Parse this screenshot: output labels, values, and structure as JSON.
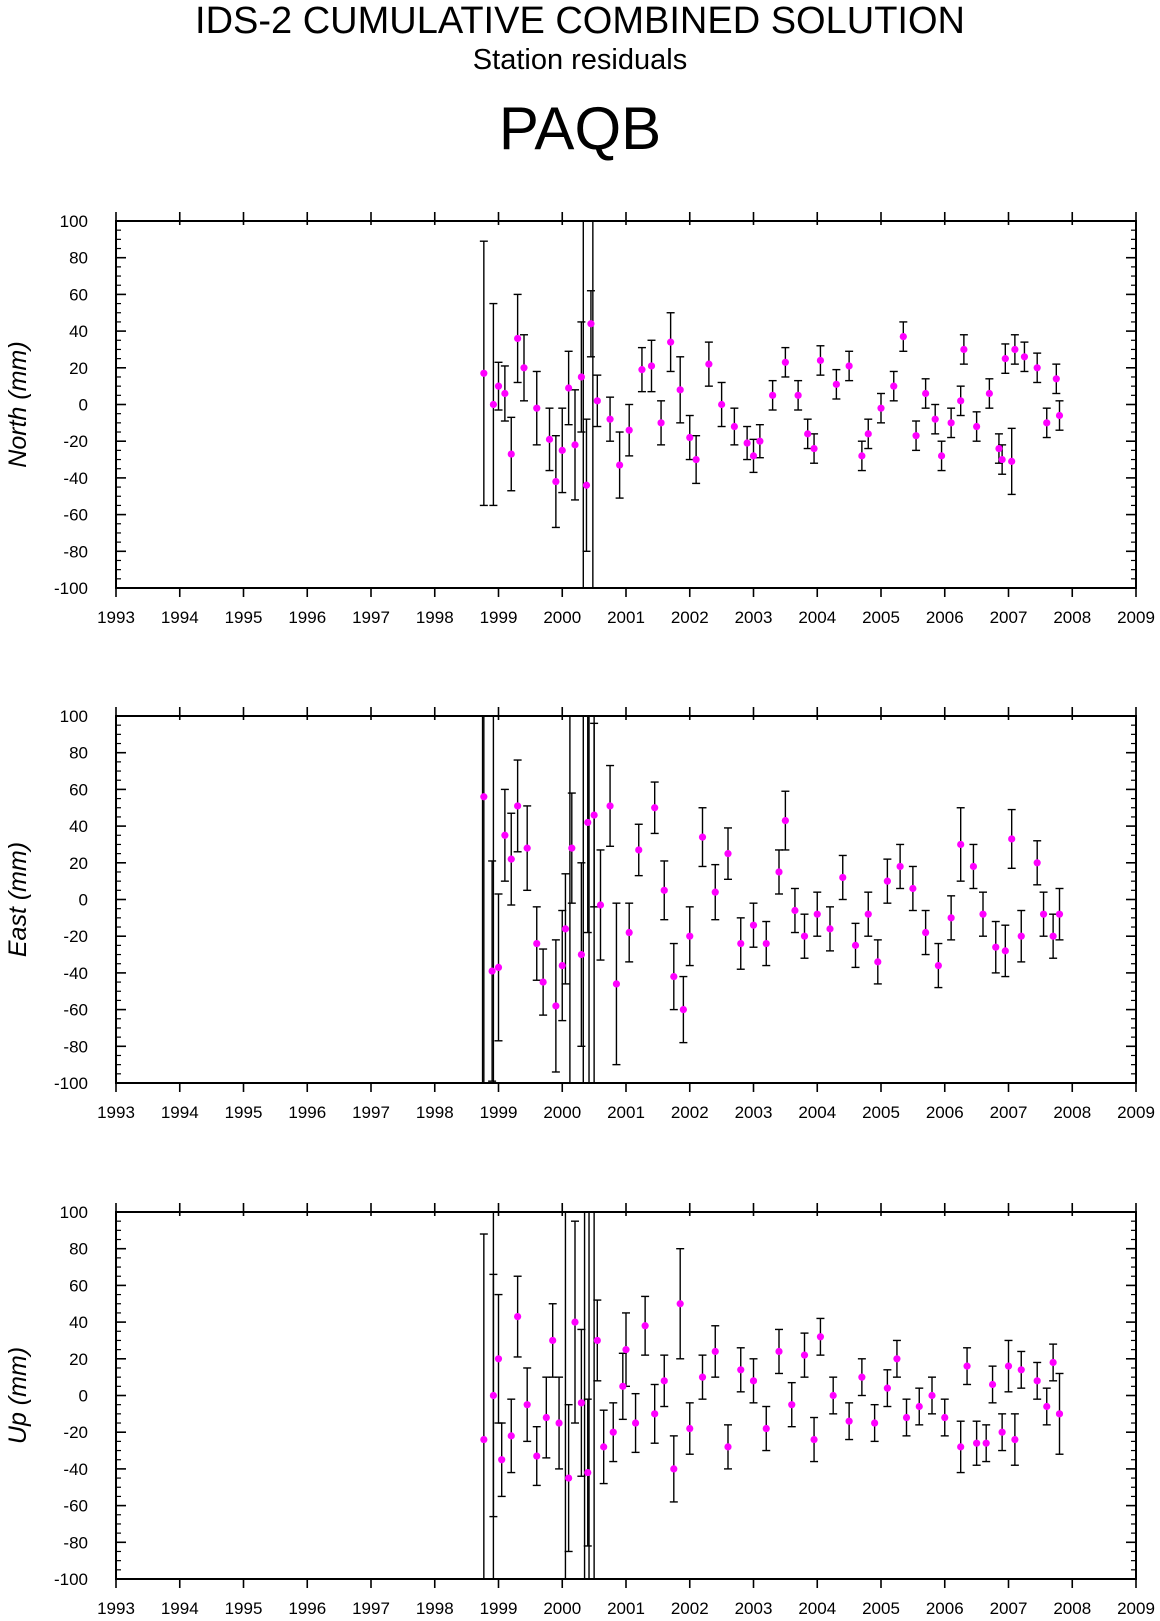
{
  "title": "IDS-2 CUMULATIVE COMBINED SOLUTION",
  "subtitle": "Station residuals",
  "station": "PAQB",
  "colors": {
    "point": "#ff00ff",
    "errorbar": "#000000",
    "frame": "#000000",
    "background": "#ffffff"
  },
  "chart_data": [
    {
      "type": "scatter",
      "ylabel": "North (mm)",
      "xlim": [
        1993,
        2009
      ],
      "ylim": [
        -100,
        100
      ],
      "x_ticks": [
        "1993",
        "1994",
        "1995",
        "1996",
        "1997",
        "1998",
        "1999",
        "2000",
        "2001",
        "2002",
        "2003",
        "2004",
        "2005",
        "2006",
        "2007",
        "2008",
        "2009"
      ],
      "y_ticks": [
        "100",
        "80",
        "60",
        "40",
        "20",
        "0",
        "-20",
        "-40",
        "-60",
        "-80",
        "-100"
      ],
      "grid": false,
      "error_bars": true,
      "points": [
        [
          1998.77,
          17,
          72
        ],
        [
          1998.92,
          0,
          55
        ],
        [
          1999.0,
          10,
          13
        ],
        [
          1999.1,
          6,
          15
        ],
        [
          1999.2,
          -27,
          20
        ],
        [
          1999.3,
          36,
          24
        ],
        [
          1999.4,
          20,
          18
        ],
        [
          1999.6,
          -2,
          20
        ],
        [
          1999.8,
          -19,
          17
        ],
        [
          1999.9,
          -42,
          25
        ],
        [
          2000.0,
          -25,
          23
        ],
        [
          2000.1,
          9,
          20
        ],
        [
          2000.2,
          -22,
          30
        ],
        [
          2000.3,
          15,
          30
        ],
        [
          2000.38,
          -44,
          36
        ],
        [
          2000.45,
          44,
          18
        ],
        [
          2000.55,
          2,
          14
        ],
        [
          2000.75,
          -8,
          12
        ],
        [
          2000.9,
          -33,
          18
        ],
        [
          2001.05,
          -14,
          14
        ],
        [
          2001.25,
          19,
          12
        ],
        [
          2001.4,
          21,
          14
        ],
        [
          2001.55,
          -10,
          12
        ],
        [
          2001.7,
          34,
          16
        ],
        [
          2001.85,
          8,
          18
        ],
        [
          2002.0,
          -18,
          12
        ],
        [
          2002.1,
          -30,
          13
        ],
        [
          2002.3,
          22,
          12
        ],
        [
          2002.5,
          0,
          12
        ],
        [
          2002.7,
          -12,
          10
        ],
        [
          2002.9,
          -21,
          9
        ],
        [
          2003.0,
          -28,
          9
        ],
        [
          2003.1,
          -20,
          9
        ],
        [
          2003.3,
          5,
          8
        ],
        [
          2003.5,
          23,
          8
        ],
        [
          2003.7,
          5,
          8
        ],
        [
          2003.85,
          -16,
          8
        ],
        [
          2003.95,
          -24,
          8
        ],
        [
          2004.05,
          24,
          8
        ],
        [
          2004.3,
          11,
          8
        ],
        [
          2004.5,
          21,
          8
        ],
        [
          2004.7,
          -28,
          8
        ],
        [
          2004.8,
          -16,
          8
        ],
        [
          2005.0,
          -2,
          8
        ],
        [
          2005.2,
          10,
          8
        ],
        [
          2005.35,
          37,
          8
        ],
        [
          2005.55,
          -17,
          8
        ],
        [
          2005.7,
          6,
          8
        ],
        [
          2005.85,
          -8,
          8
        ],
        [
          2005.95,
          -28,
          8
        ],
        [
          2006.1,
          -10,
          8
        ],
        [
          2006.25,
          2,
          8
        ],
        [
          2006.3,
          30,
          8
        ],
        [
          2006.5,
          -12,
          8
        ],
        [
          2006.7,
          6,
          8
        ],
        [
          2006.85,
          -24,
          8
        ],
        [
          2006.9,
          -30,
          8
        ],
        [
          2006.95,
          25,
          8
        ],
        [
          2007.05,
          -31,
          18
        ],
        [
          2007.1,
          30,
          8
        ],
        [
          2007.25,
          26,
          8
        ],
        [
          2007.45,
          20,
          8
        ],
        [
          2007.6,
          -10,
          8
        ],
        [
          2007.75,
          14,
          8
        ],
        [
          2007.8,
          -6,
          8
        ]
      ],
      "extreme_bars_x": [
        2000.33,
        2000.48
      ]
    },
    {
      "type": "scatter",
      "ylabel": "East (mm)",
      "xlim": [
        1993,
        2009
      ],
      "ylim": [
        -100,
        100
      ],
      "x_ticks": [
        "1993",
        "1994",
        "1995",
        "1996",
        "1997",
        "1998",
        "1999",
        "2000",
        "2001",
        "2002",
        "2003",
        "2004",
        "2005",
        "2006",
        "2007",
        "2008",
        "2009"
      ],
      "y_ticks": [
        "100",
        "80",
        "60",
        "40",
        "20",
        "0",
        "-20",
        "-40",
        "-60",
        "-80",
        "-100"
      ],
      "grid": false,
      "error_bars": true,
      "points": [
        [
          1998.77,
          56,
          160
        ],
        [
          1998.9,
          -39,
          60
        ],
        [
          1999.0,
          -37,
          40
        ],
        [
          1999.1,
          35,
          25
        ],
        [
          1999.2,
          22,
          25
        ],
        [
          1999.3,
          51,
          25
        ],
        [
          1999.45,
          28,
          23
        ],
        [
          1999.6,
          -24,
          20
        ],
        [
          1999.7,
          -45,
          18
        ],
        [
          1999.9,
          -58,
          36
        ],
        [
          2000.0,
          -36,
          30
        ],
        [
          2000.05,
          -16,
          30
        ],
        [
          2000.15,
          28,
          30
        ],
        [
          2000.3,
          -30,
          50
        ],
        [
          2000.4,
          42,
          60
        ],
        [
          2000.5,
          46,
          50
        ],
        [
          2000.6,
          -3,
          30
        ],
        [
          2000.75,
          51,
          22
        ],
        [
          2000.85,
          -46,
          44
        ],
        [
          2001.05,
          -18,
          16
        ],
        [
          2001.2,
          27,
          14
        ],
        [
          2001.45,
          50,
          14
        ],
        [
          2001.6,
          5,
          16
        ],
        [
          2001.75,
          -42,
          18
        ],
        [
          2001.9,
          -60,
          18
        ],
        [
          2002.0,
          -20,
          16
        ],
        [
          2002.2,
          34,
          16
        ],
        [
          2002.4,
          4,
          15
        ],
        [
          2002.6,
          25,
          14
        ],
        [
          2002.8,
          -24,
          14
        ],
        [
          2003.0,
          -14,
          12
        ],
        [
          2003.2,
          -24,
          12
        ],
        [
          2003.4,
          15,
          12
        ],
        [
          2003.5,
          43,
          16
        ],
        [
          2003.65,
          -6,
          12
        ],
        [
          2003.8,
          -20,
          12
        ],
        [
          2004.0,
          -8,
          12
        ],
        [
          2004.2,
          -16,
          12
        ],
        [
          2004.4,
          12,
          12
        ],
        [
          2004.6,
          -25,
          12
        ],
        [
          2004.8,
          -8,
          12
        ],
        [
          2004.95,
          -34,
          12
        ],
        [
          2005.1,
          10,
          12
        ],
        [
          2005.3,
          18,
          12
        ],
        [
          2005.5,
          6,
          12
        ],
        [
          2005.7,
          -18,
          12
        ],
        [
          2005.9,
          -36,
          12
        ],
        [
          2006.1,
          -10,
          12
        ],
        [
          2006.25,
          30,
          20
        ],
        [
          2006.45,
          18,
          12
        ],
        [
          2006.6,
          -8,
          12
        ],
        [
          2006.8,
          -26,
          14
        ],
        [
          2006.95,
          -28,
          14
        ],
        [
          2007.05,
          33,
          16
        ],
        [
          2007.2,
          -20,
          14
        ],
        [
          2007.45,
          20,
          12
        ],
        [
          2007.55,
          -8,
          12
        ],
        [
          2007.7,
          -20,
          12
        ],
        [
          2007.8,
          -8,
          14
        ]
      ],
      "extreme_bars_x": [
        1998.75,
        1998.92,
        2000.12,
        2000.33,
        2000.42,
        2000.5
      ]
    },
    {
      "type": "scatter",
      "ylabel": "Up (mm)",
      "xlim": [
        1993,
        2009
      ],
      "ylim": [
        -100,
        100
      ],
      "x_ticks": [
        "1993",
        "1994",
        "1995",
        "1996",
        "1997",
        "1998",
        "1999",
        "2000",
        "2001",
        "2002",
        "2003",
        "2004",
        "2005",
        "2006",
        "2007",
        "2008",
        "2009"
      ],
      "y_ticks": [
        "100",
        "80",
        "60",
        "40",
        "20",
        "0",
        "-20",
        "-40",
        "-60",
        "-80",
        "-100"
      ],
      "grid": false,
      "error_bars": true,
      "points": [
        [
          1998.77,
          -24,
          112
        ],
        [
          1998.92,
          0,
          66
        ],
        [
          1999.0,
          20,
          35
        ],
        [
          1999.05,
          -35,
          20
        ],
        [
          1999.2,
          -22,
          20
        ],
        [
          1999.3,
          43,
          22
        ],
        [
          1999.45,
          -5,
          20
        ],
        [
          1999.6,
          -33,
          16
        ],
        [
          1999.75,
          -12,
          22
        ],
        [
          1999.85,
          30,
          20
        ],
        [
          1999.95,
          -15,
          25
        ],
        [
          2000.1,
          -45,
          40
        ],
        [
          2000.2,
          40,
          55
        ],
        [
          2000.3,
          -4,
          40
        ],
        [
          2000.4,
          -42,
          40
        ],
        [
          2000.55,
          30,
          22
        ],
        [
          2000.65,
          -28,
          20
        ],
        [
          2000.8,
          -20,
          16
        ],
        [
          2000.95,
          5,
          18
        ],
        [
          2001.0,
          25,
          20
        ],
        [
          2001.15,
          -15,
          16
        ],
        [
          2001.3,
          38,
          16
        ],
        [
          2001.45,
          -10,
          16
        ],
        [
          2001.6,
          8,
          14
        ],
        [
          2001.75,
          -40,
          18
        ],
        [
          2001.85,
          50,
          30
        ],
        [
          2002.0,
          -18,
          14
        ],
        [
          2002.2,
          10,
          12
        ],
        [
          2002.4,
          24,
          14
        ],
        [
          2002.6,
          -28,
          12
        ],
        [
          2002.8,
          14,
          12
        ],
        [
          2003.0,
          8,
          12
        ],
        [
          2003.2,
          -18,
          12
        ],
        [
          2003.4,
          24,
          12
        ],
        [
          2003.6,
          -5,
          12
        ],
        [
          2003.8,
          22,
          12
        ],
        [
          2003.95,
          -24,
          12
        ],
        [
          2004.05,
          32,
          10
        ],
        [
          2004.25,
          0,
          10
        ],
        [
          2004.5,
          -14,
          10
        ],
        [
          2004.7,
          10,
          10
        ],
        [
          2004.9,
          -15,
          10
        ],
        [
          2005.1,
          4,
          10
        ],
        [
          2005.25,
          20,
          10
        ],
        [
          2005.4,
          -12,
          10
        ],
        [
          2005.6,
          -6,
          10
        ],
        [
          2005.8,
          0,
          10
        ],
        [
          2006.0,
          -12,
          10
        ],
        [
          2006.25,
          -28,
          14
        ],
        [
          2006.35,
          16,
          10
        ],
        [
          2006.5,
          -26,
          12
        ],
        [
          2006.65,
          -26,
          10
        ],
        [
          2006.75,
          6,
          10
        ],
        [
          2006.9,
          -20,
          10
        ],
        [
          2007.0,
          16,
          14
        ],
        [
          2007.1,
          -24,
          14
        ],
        [
          2007.2,
          14,
          10
        ],
        [
          2007.45,
          8,
          10
        ],
        [
          2007.6,
          -6,
          10
        ],
        [
          2007.7,
          18,
          10
        ],
        [
          2007.8,
          -10,
          22
        ]
      ],
      "extreme_bars_x": [
        1998.92,
        2000.05,
        2000.35,
        2000.42,
        2000.5
      ]
    }
  ]
}
